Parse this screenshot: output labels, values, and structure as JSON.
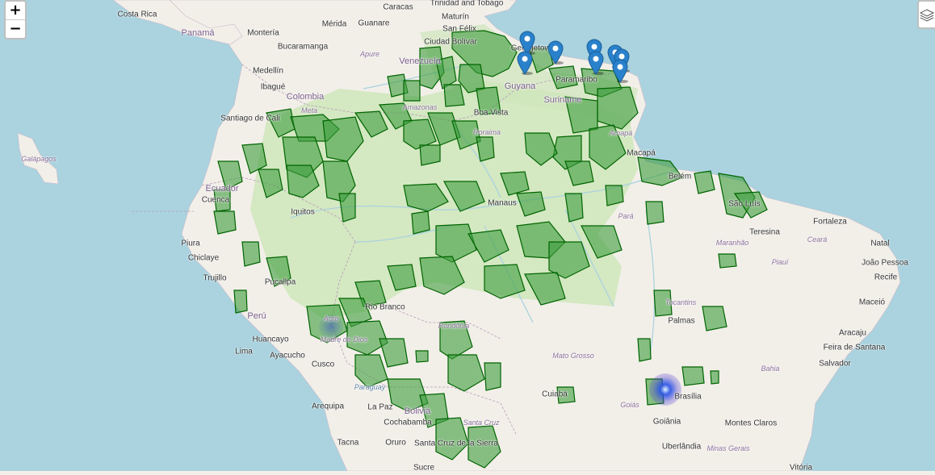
{
  "controls": {
    "zoom_in": "+",
    "zoom_out": "−",
    "layers_icon": "layers-icon"
  },
  "colors": {
    "ocean": "#aad3df",
    "land": "#f2efe9",
    "forest_light": "#cfe6bb",
    "protected_fill": "#3d9c3d",
    "protected_stroke": "#006400",
    "marker": "#2a81cb",
    "heat_blue": "#2244cc"
  },
  "labels": [
    {
      "text": "Costa Rica",
      "type": "place"
    },
    {
      "text": "Panamá",
      "type": "country"
    },
    {
      "text": "Montería",
      "type": "place"
    },
    {
      "text": "Bucaramanga",
      "type": "place"
    },
    {
      "text": "Medellín",
      "type": "place"
    },
    {
      "text": "Ibagué",
      "type": "place"
    },
    {
      "text": "Colombia",
      "type": "country"
    },
    {
      "text": "Santiago de Cali",
      "type": "place"
    },
    {
      "text": "Galápagos",
      "type": "region"
    },
    {
      "text": "Ecuador",
      "type": "country"
    },
    {
      "text": "Cuenca",
      "type": "place"
    },
    {
      "text": "Iquitos",
      "type": "place"
    },
    {
      "text": "Piura",
      "type": "place"
    },
    {
      "text": "Chiclaye",
      "type": "place"
    },
    {
      "text": "Trujillo",
      "type": "place"
    },
    {
      "text": "Pucallpa",
      "type": "place"
    },
    {
      "text": "Perú",
      "type": "country"
    },
    {
      "text": "Huancayo",
      "type": "place"
    },
    {
      "text": "Lima",
      "type": "place"
    },
    {
      "text": "Ayacucho",
      "type": "place"
    },
    {
      "text": "Cusco",
      "type": "place"
    },
    {
      "text": "Arequipa",
      "type": "place"
    },
    {
      "text": "Tacna",
      "type": "place"
    },
    {
      "text": "La Paz",
      "type": "place"
    },
    {
      "text": "Oruro",
      "type": "place"
    },
    {
      "text": "Cochabamba",
      "type": "place"
    },
    {
      "text": "Sucre",
      "type": "place"
    },
    {
      "text": "Santa Cruz de la Sierra",
      "type": "place"
    },
    {
      "text": "Bolivia",
      "type": "country"
    },
    {
      "text": "Caracas",
      "type": "place"
    },
    {
      "text": "Maturín",
      "type": "place"
    },
    {
      "text": "Mérida",
      "type": "place"
    },
    {
      "text": "Guanare",
      "type": "place"
    },
    {
      "text": "San Félix",
      "type": "place"
    },
    {
      "text": "Ciudad Bolívar",
      "type": "place"
    },
    {
      "text": "Venezuela",
      "type": "country"
    },
    {
      "text": "Apure",
      "type": "region"
    },
    {
      "text": "Meta",
      "type": "region"
    },
    {
      "text": "Georgetown",
      "type": "place"
    },
    {
      "text": "Guyana",
      "type": "country"
    },
    {
      "text": "Paramaribo",
      "type": "place"
    },
    {
      "text": "Suriname",
      "type": "country"
    },
    {
      "text": "Boa Vista",
      "type": "place"
    },
    {
      "text": "Roraima",
      "type": "region"
    },
    {
      "text": "Amazonas",
      "type": "region"
    },
    {
      "text": "Manaus",
      "type": "place"
    },
    {
      "text": "Amapá",
      "type": "region"
    },
    {
      "text": "Macapá",
      "type": "place"
    },
    {
      "text": "Belém",
      "type": "place"
    },
    {
      "text": "São Luís",
      "type": "place"
    },
    {
      "text": "Pará",
      "type": "region"
    },
    {
      "text": "Fortaleza",
      "type": "place"
    },
    {
      "text": "Teresina",
      "type": "place"
    },
    {
      "text": "Ceará",
      "type": "region"
    },
    {
      "text": "Natal",
      "type": "place"
    },
    {
      "text": "Maranhão",
      "type": "region"
    },
    {
      "text": "Piauí",
      "type": "region"
    },
    {
      "text": "João Pessoa",
      "type": "place"
    },
    {
      "text": "Recife",
      "type": "place"
    },
    {
      "text": "Maceió",
      "type": "place"
    },
    {
      "text": "Aracaju",
      "type": "place"
    },
    {
      "text": "Feira de Santana",
      "type": "place"
    },
    {
      "text": "Salvador",
      "type": "place"
    },
    {
      "text": "Bahia",
      "type": "region"
    },
    {
      "text": "Tocantins",
      "type": "region"
    },
    {
      "text": "Palmas",
      "type": "place"
    },
    {
      "text": "Rio Branco",
      "type": "place"
    },
    {
      "text": "Rondônia",
      "type": "region"
    },
    {
      "text": "Acre",
      "type": "region"
    },
    {
      "text": "Madre de Dios",
      "type": "region"
    },
    {
      "text": "Mato Grosso",
      "type": "region"
    },
    {
      "text": "Cuiabá",
      "type": "place"
    },
    {
      "text": "Brasília",
      "type": "place"
    },
    {
      "text": "Goiás",
      "type": "region"
    },
    {
      "text": "Goiânia",
      "type": "place"
    },
    {
      "text": "Montes Claros",
      "type": "place"
    },
    {
      "text": "Uberlândia",
      "type": "place"
    },
    {
      "text": "Minas Gerais",
      "type": "region"
    },
    {
      "text": "Vitória",
      "type": "place"
    },
    {
      "text": "Santa Cruz",
      "type": "region"
    },
    {
      "text": "Trinidad and Tobago",
      "type": "place"
    },
    {
      "text": "Paraguay",
      "type": "water"
    }
  ],
  "markers": [
    {
      "name": "marker-georgetown-1"
    },
    {
      "name": "marker-georgetown-2"
    },
    {
      "name": "marker-essequibo"
    },
    {
      "name": "marker-paramaribo-1"
    },
    {
      "name": "marker-paramaribo-2"
    },
    {
      "name": "marker-french-guiana-1"
    },
    {
      "name": "marker-french-guiana-2"
    },
    {
      "name": "marker-french-guiana-3"
    }
  ]
}
